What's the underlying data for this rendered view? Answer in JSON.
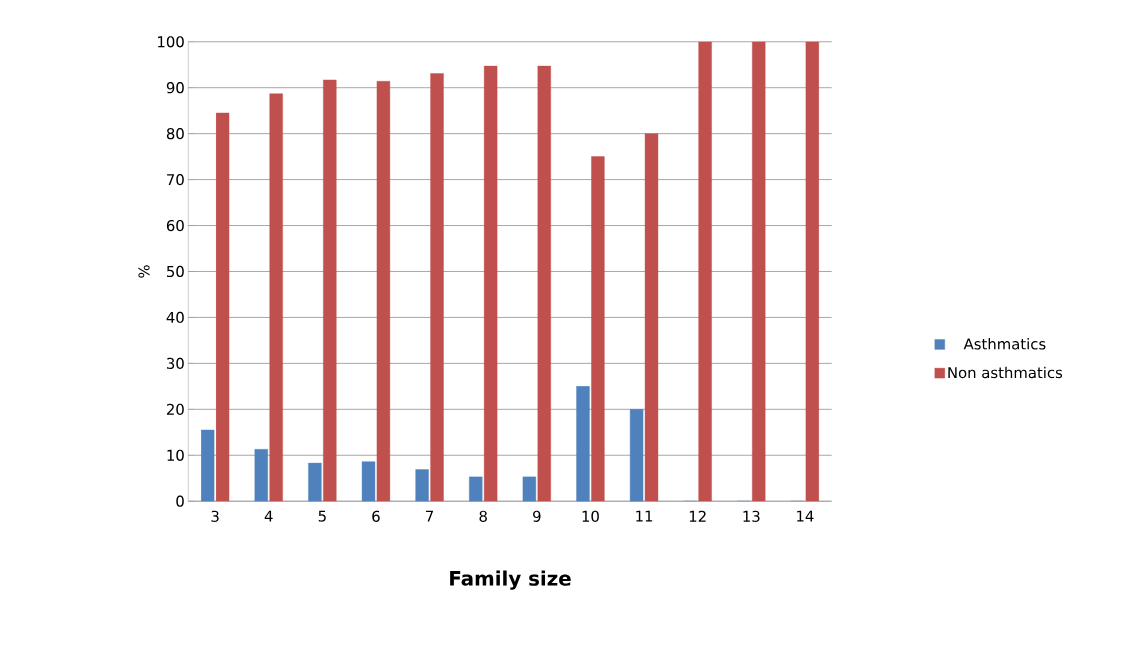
{
  "chart_data": {
    "type": "bar",
    "xlabel": "Family size",
    "ylabel": "%",
    "categories": [
      "3",
      "4",
      "5",
      "6",
      "7",
      "8",
      "9",
      "10",
      "11",
      "12",
      "13",
      "14"
    ],
    "series": [
      {
        "name": "Asthmatics",
        "color": "#4f81bd",
        "values": [
          15.5,
          11.3,
          8.3,
          8.6,
          6.9,
          5.3,
          5.3,
          25,
          20,
          0,
          0,
          0
        ]
      },
      {
        "name": "Non asthmatics",
        "color": "#c0504d",
        "values": [
          84.5,
          88.7,
          91.7,
          91.4,
          93.1,
          94.7,
          94.7,
          75,
          80,
          100,
          100,
          100
        ]
      }
    ],
    "ylim": [
      0,
      100
    ],
    "yticks": [
      0,
      10,
      20,
      30,
      40,
      50,
      60,
      70,
      80,
      90,
      100
    ],
    "grid": "y",
    "legend": "right"
  }
}
